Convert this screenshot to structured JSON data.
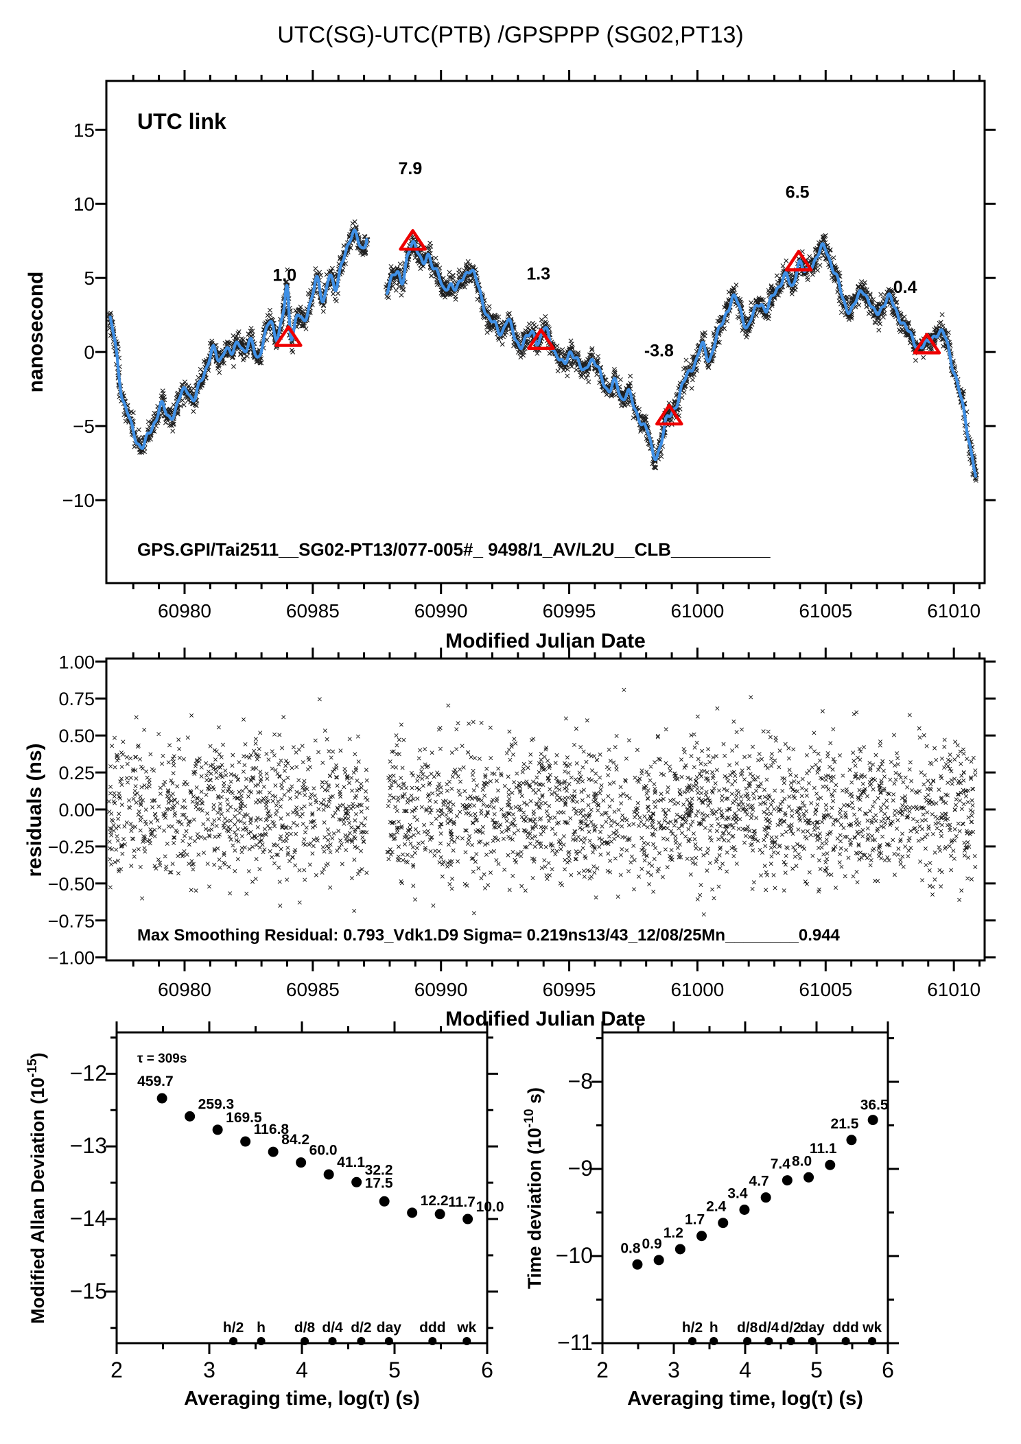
{
  "title": "UTC(SG)-UTC(PTB)  /GPSPPP  (SG02,PT13)",
  "colors": {
    "curve_blue": "#3f90e6",
    "marker_black": "#000000",
    "annotation_red": "#ee0000",
    "utc_link_green": "#7a9a2c"
  },
  "chart_data": [
    {
      "type": "line",
      "name": "utc-link-time-series",
      "corner_label": "UTC link",
      "ylabel": "nanosecond",
      "xlabel": "Modified Julian Date",
      "footer": "GPS.GPI/Tai2511__SG02-PT13/077-005#_  9498/1_AV/L2U__CLB__________",
      "xlim": [
        60976.95,
        61011.2
      ],
      "ylim": [
        -15.6,
        18.3
      ],
      "xticks": {
        "major": [
          60980,
          60985,
          60990,
          60995,
          61000,
          61005,
          61010
        ],
        "labels": [
          "60980",
          "60985",
          "60990",
          "60995",
          "61000",
          "61005",
          "61010"
        ],
        "minor_step": 1
      },
      "yticks": {
        "major": [
          -10,
          -5,
          0,
          5,
          10,
          15
        ],
        "labels": [
          "−10",
          "−5",
          "0",
          "5",
          "10",
          "15"
        ]
      },
      "gap": [
        60987.15,
        60987.9
      ],
      "scatter_band_sigma_ns": 0.33,
      "series_points": [
        [
          60977.1,
          2.1
        ],
        [
          60977.3,
          0.5
        ],
        [
          60977.55,
          -2.8
        ],
        [
          60977.8,
          -4.3
        ],
        [
          60978.05,
          -5.6
        ],
        [
          60978.35,
          -6.4
        ],
        [
          60978.6,
          -5.6
        ],
        [
          60978.85,
          -4.6
        ],
        [
          60979.1,
          -3.6
        ],
        [
          60979.35,
          -4.4
        ],
        [
          60979.6,
          -4.0
        ],
        [
          60979.85,
          -3.0
        ],
        [
          60980.1,
          -2.5
        ],
        [
          60980.35,
          -3.2
        ],
        [
          60980.6,
          -2.2
        ],
        [
          60980.85,
          -1.0
        ],
        [
          60981.1,
          0.2
        ],
        [
          60981.35,
          -0.7
        ],
        [
          60981.6,
          0.4
        ],
        [
          60981.85,
          -0.2
        ],
        [
          60982.1,
          0.7
        ],
        [
          60982.35,
          0.1
        ],
        [
          60982.6,
          0.6
        ],
        [
          60982.85,
          -0.3
        ],
        [
          60983.1,
          0.9
        ],
        [
          60983.35,
          2.0
        ],
        [
          60983.6,
          1.1
        ],
        [
          60983.85,
          2.6
        ],
        [
          60984.0,
          4.2
        ],
        [
          60984.15,
          1.1
        ],
        [
          60984.4,
          2.6
        ],
        [
          60984.65,
          1.9
        ],
        [
          60984.9,
          3.4
        ],
        [
          60985.15,
          4.9
        ],
        [
          60985.4,
          3.3
        ],
        [
          60985.65,
          5.4
        ],
        [
          60985.9,
          4.1
        ],
        [
          60986.15,
          6.2
        ],
        [
          60986.4,
          7.4
        ],
        [
          60986.65,
          7.9
        ],
        [
          60986.9,
          7.1
        ],
        [
          60987.1,
          7.6
        ],
        [
          60987.9,
          3.9
        ],
        [
          60988.1,
          5.0
        ],
        [
          60988.3,
          5.6
        ],
        [
          60988.5,
          4.7
        ],
        [
          60988.7,
          6.3
        ],
        [
          60988.9,
          7.5
        ],
        [
          60989.1,
          6.9
        ],
        [
          60989.3,
          5.8
        ],
        [
          60989.5,
          6.5
        ],
        [
          60989.7,
          5.9
        ],
        [
          60989.9,
          5.2
        ],
        [
          60990.1,
          4.1
        ],
        [
          60990.35,
          4.7
        ],
        [
          60990.6,
          4.2
        ],
        [
          60990.85,
          5.0
        ],
        [
          60991.1,
          5.6
        ],
        [
          60991.35,
          4.9
        ],
        [
          60991.6,
          3.6
        ],
        [
          60991.85,
          2.3
        ],
        [
          60992.1,
          1.8
        ],
        [
          60992.35,
          1.4
        ],
        [
          60992.6,
          2.1
        ],
        [
          60992.85,
          1.1
        ],
        [
          60993.1,
          0.5
        ],
        [
          60993.35,
          0.9
        ],
        [
          60993.6,
          1.3
        ],
        [
          60993.8,
          0.7
        ],
        [
          60994.05,
          1.5
        ],
        [
          60994.3,
          0.6
        ],
        [
          60994.55,
          -0.3
        ],
        [
          60994.8,
          -0.9
        ],
        [
          60995.05,
          0.1
        ],
        [
          60995.3,
          -0.6
        ],
        [
          60995.55,
          -1.3
        ],
        [
          60995.8,
          -0.5
        ],
        [
          60996.05,
          -1.0
        ],
        [
          60996.3,
          -1.8
        ],
        [
          60996.55,
          -2.6
        ],
        [
          60996.8,
          -2.1
        ],
        [
          60997.05,
          -3.1
        ],
        [
          60997.3,
          -2.7
        ],
        [
          60997.55,
          -3.9
        ],
        [
          60997.8,
          -4.6
        ],
        [
          60998.05,
          -5.4
        ],
        [
          60998.3,
          -7.0
        ],
        [
          60998.55,
          -6.3
        ],
        [
          60998.75,
          -4.9
        ],
        [
          60998.95,
          -4.2
        ],
        [
          60999.2,
          -3.4
        ],
        [
          60999.45,
          -2.2
        ],
        [
          60999.7,
          -1.2
        ],
        [
          60999.95,
          -0.6
        ],
        [
          61000.2,
          0.4
        ],
        [
          61000.45,
          -0.4
        ],
        [
          61000.7,
          0.7
        ],
        [
          61000.95,
          1.9
        ],
        [
          61001.2,
          3.0
        ],
        [
          61001.45,
          3.6
        ],
        [
          61001.7,
          2.7
        ],
        [
          61001.95,
          1.7
        ],
        [
          61002.2,
          2.6
        ],
        [
          61002.45,
          3.4
        ],
        [
          61002.7,
          2.8
        ],
        [
          61002.95,
          3.8
        ],
        [
          61003.2,
          4.6
        ],
        [
          61003.45,
          5.1
        ],
        [
          61003.7,
          4.4
        ],
        [
          61003.95,
          6.1
        ],
        [
          61004.2,
          5.3
        ],
        [
          61004.45,
          5.9
        ],
        [
          61004.7,
          6.6
        ],
        [
          61004.95,
          7.0
        ],
        [
          61005.2,
          6.1
        ],
        [
          61005.45,
          4.9
        ],
        [
          61005.7,
          3.4
        ],
        [
          61005.95,
          2.9
        ],
        [
          61006.2,
          3.4
        ],
        [
          61006.45,
          4.2
        ],
        [
          61006.7,
          3.4
        ],
        [
          61006.95,
          2.5
        ],
        [
          61007.2,
          3.1
        ],
        [
          61007.45,
          3.7
        ],
        [
          61007.7,
          2.9
        ],
        [
          61007.95,
          2.2
        ],
        [
          61008.2,
          1.4
        ],
        [
          61008.45,
          0.7
        ],
        [
          61008.7,
          0.4
        ],
        [
          61008.95,
          0.5
        ],
        [
          61009.2,
          1.1
        ],
        [
          61009.45,
          1.3
        ],
        [
          61009.7,
          0.8
        ],
        [
          61009.95,
          -0.9
        ],
        [
          61010.2,
          -2.6
        ],
        [
          61010.45,
          -4.6
        ],
        [
          61010.7,
          -6.9
        ],
        [
          61010.85,
          -8.4
        ]
      ],
      "annotations": [
        {
          "label": "1.0",
          "triangle": [
            60984.05,
            1.0
          ],
          "label_pos": [
            60983.9,
            4.8
          ]
        },
        {
          "label": "7.9",
          "triangle": [
            60988.9,
            7.5
          ],
          "label_pos": [
            60988.8,
            12.0
          ]
        },
        {
          "label": "1.3",
          "triangle": [
            60993.9,
            0.8
          ],
          "label_pos": [
            60993.8,
            4.9
          ]
        },
        {
          "label": "-3.8",
          "triangle": [
            60998.9,
            -4.3
          ],
          "label_pos": [
            60998.5,
            -0.3
          ]
        },
        {
          "label": "6.5",
          "triangle": [
            61003.95,
            6.1
          ],
          "label_pos": [
            61003.9,
            10.4
          ]
        },
        {
          "label": "0.4",
          "triangle": [
            61008.95,
            0.5
          ],
          "label_pos": [
            61008.1,
            4.0
          ]
        }
      ]
    },
    {
      "type": "scatter",
      "name": "smoothing-residuals",
      "ylabel": "residuals (ns)",
      "xlabel": "Modified Julian Date",
      "stats_text": "Max Smoothing Residual: 0.793_Vdk1.D9  Sigma= 0.219ns13/43_12/08/25Mn________0.944",
      "xlim": [
        60976.95,
        61011.2
      ],
      "ylim": [
        -1.02,
        1.02
      ],
      "xticks": {
        "major": [
          60980,
          60985,
          60990,
          60995,
          61000,
          61005,
          61010
        ],
        "labels": [
          "60980",
          "60985",
          "60990",
          "60995",
          "61000",
          "61005",
          "61010"
        ],
        "minor_step": 1
      },
      "yticks": {
        "major": [
          1.0,
          0.75,
          0.5,
          0.25,
          0.0,
          -0.25,
          -0.5,
          -0.75,
          -1.0
        ],
        "labels": [
          "1.00",
          "0.75",
          "0.50",
          "0.25",
          "0.00",
          "−0.25",
          "−0.50",
          "−0.75",
          "−1.00"
        ]
      },
      "gap": [
        60987.15,
        60987.9
      ],
      "scatter": {
        "n": 2900,
        "sigma_ns": 0.24,
        "clip_ns": 0.83
      }
    },
    {
      "type": "scatter",
      "name": "modified-allan-deviation",
      "ylabel_parts": {
        "base": "Modified Allan Deviation (10",
        "sup": "-15",
        "end": ")"
      },
      "xlabel": "Averaging time, log(τ) (s)",
      "tau_label": "τ = 309s",
      "xlim": [
        2,
        6
      ],
      "ylim": [
        -15.71,
        -11.43
      ],
      "xticks": {
        "major": [
          2,
          3,
          4,
          5,
          6
        ],
        "labels": [
          "2",
          "3",
          "4",
          "5",
          "6"
        ],
        "minor": [
          2.5,
          3.5,
          4.5,
          5.5
        ]
      },
      "yticks": {
        "major": [
          -12,
          -13,
          -14,
          -15
        ],
        "labels": [
          "−12",
          "−13",
          "−14",
          "−15"
        ],
        "minor": [
          -11.5,
          -12.5,
          -13.5,
          -14.5,
          -15.5
        ]
      },
      "unit_exp": -15,
      "log_tau": [
        2.49,
        2.79,
        3.09,
        3.39,
        3.69,
        3.99,
        4.29,
        4.59,
        4.89,
        5.19,
        5.49,
        5.79
      ],
      "values": [
        459.7,
        259.3,
        169.5,
        116.8,
        84.2,
        60.0,
        41.1,
        32.2,
        17.5,
        12.2,
        11.7,
        10.0
      ],
      "value_labels": [
        "459.7",
        "259.3",
        "169.5",
        "116.8",
        "84.2",
        "60.0",
        "41.1",
        "32.2",
        "17.5",
        "12.2",
        "11.7",
        "10.0"
      ],
      "axis_markers": {
        "labels": [
          "h/2",
          "h",
          "d/8",
          "d/4",
          "d/2",
          "day",
          "ddd",
          "wk"
        ],
        "log_tau": [
          3.26,
          3.56,
          4.03,
          4.33,
          4.64,
          4.94,
          5.41,
          5.78
        ]
      }
    },
    {
      "type": "scatter",
      "name": "time-deviation",
      "ylabel_parts": {
        "base": "Time deviation (10",
        "sup": "-10",
        "end": " s)"
      },
      "xlabel": "Averaging time, log(τ) (s)",
      "xlim": [
        2,
        6
      ],
      "ylim": [
        -11.0,
        -7.433
      ],
      "xticks": {
        "major": [
          2,
          3,
          4,
          5,
          6
        ],
        "labels": [
          "2",
          "3",
          "4",
          "5",
          "6"
        ],
        "minor": [
          2.5,
          3.5,
          4.5,
          5.5
        ]
      },
      "yticks": {
        "major": [
          -8,
          -9,
          -10,
          -11
        ],
        "labels": [
          "−8",
          "−9",
          "−10",
          "−11"
        ],
        "minor": [
          -7.5,
          -8.5,
          -9.5,
          -10.5
        ]
      },
      "unit_exp": -10,
      "log_tau": [
        2.49,
        2.79,
        3.09,
        3.39,
        3.69,
        3.99,
        4.29,
        4.59,
        4.89,
        5.19,
        5.49,
        5.79
      ],
      "values": [
        0.8,
        0.9,
        1.2,
        1.7,
        2.4,
        3.4,
        4.7,
        7.4,
        8.0,
        11.1,
        21.5,
        36.5
      ],
      "value_labels": [
        "0.8",
        "0.9",
        "1.2",
        "1.7",
        "2.4",
        "3.4",
        "4.7",
        "7.4",
        "8.0",
        "11.1",
        "21.5",
        "36.5"
      ],
      "axis_markers": {
        "labels": [
          "h/2",
          "h",
          "d/8",
          "d/4",
          "d/2",
          "day",
          "ddd",
          "wk"
        ],
        "log_tau": [
          3.26,
          3.56,
          4.03,
          4.33,
          4.64,
          4.94,
          5.41,
          5.78
        ]
      }
    }
  ]
}
